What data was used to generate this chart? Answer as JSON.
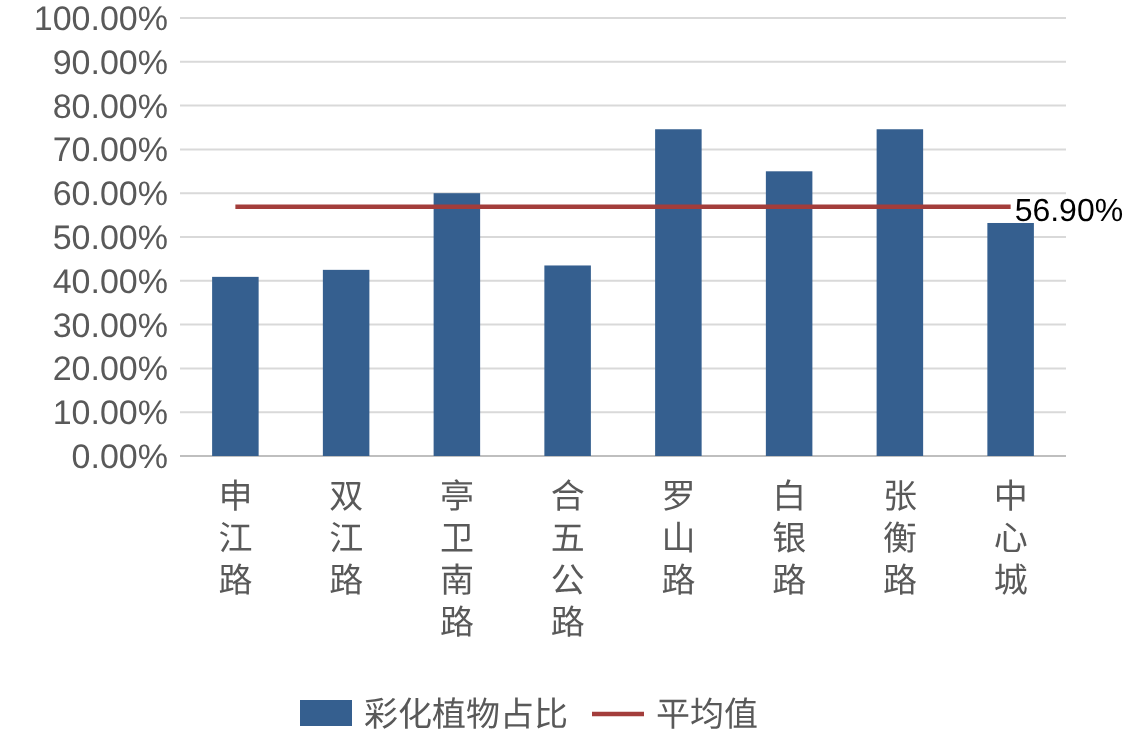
{
  "chart_data": {
    "type": "bar",
    "categories": [
      "申江路",
      "双江路",
      "亭卫南路",
      "合五公路",
      "罗山路",
      "白银路",
      "张衡路",
      "中心城"
    ],
    "series": [
      {
        "name": "彩化植物占比",
        "color": "#355f8f",
        "values": [
          40.9,
          42.5,
          60.0,
          43.5,
          74.6,
          65.0,
          74.6,
          53.2
        ]
      },
      {
        "name": "平均值",
        "type": "line",
        "color": "#a33d3b",
        "values": [
          56.9,
          56.9,
          56.9,
          56.9,
          56.9,
          56.9,
          56.9,
          56.9
        ],
        "value_labels": [
          null,
          null,
          null,
          null,
          null,
          null,
          null,
          "56.90%"
        ]
      }
    ],
    "ylim": [
      0,
      100
    ],
    "yticks": [
      {
        "value": 0,
        "label": "0.00%"
      },
      {
        "value": 10,
        "label": "10.00%"
      },
      {
        "value": 20,
        "label": "20.00%"
      },
      {
        "value": 30,
        "label": "30.00%"
      },
      {
        "value": 40,
        "label": "40.00%"
      },
      {
        "value": 50,
        "label": "50.00%"
      },
      {
        "value": 60,
        "label": "60.00%"
      },
      {
        "value": 70,
        "label": "70.00%"
      },
      {
        "value": 80,
        "label": "80.00%"
      },
      {
        "value": 90,
        "label": "90.00%"
      },
      {
        "value": 100,
        "label": "100.00%"
      }
    ],
    "grid": "y",
    "legend": "bottom",
    "marker": "none",
    "line_style": "solid"
  }
}
